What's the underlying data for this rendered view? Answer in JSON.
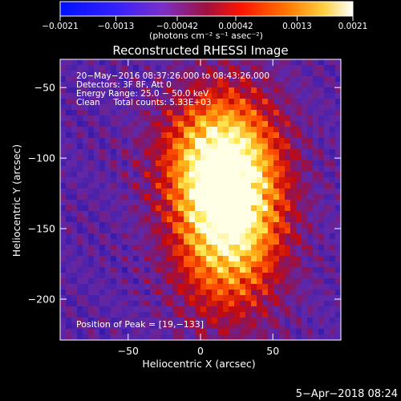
{
  "chart_data": {
    "type": "heatmap",
    "title": "Reconstructed RHESSI Image",
    "xlabel": "Heliocentric X (arcsec)",
    "ylabel": "Heliocentric Y (arcsec)",
    "xlim": [
      -97,
      97
    ],
    "ylim": [
      -229,
      -30
    ],
    "x_ticks": [
      -50,
      0,
      50
    ],
    "x_tick_labels": [
      "−50",
      "0",
      "50"
    ],
    "y_ticks": [
      -50,
      -100,
      -150,
      -200
    ],
    "y_tick_labels": [
      "−50",
      "−100",
      "−150",
      "−200"
    ],
    "colorbar": {
      "range": [
        -0.0021,
        0.0021
      ],
      "ticks": [
        -0.0021,
        -0.0013,
        -0.00042,
        0.00042,
        0.0013,
        0.0021
      ],
      "tick_labels": [
        "−0.0021",
        "−0.0013",
        "−0.00042",
        "0.00042",
        "0.0013",
        "0.0021"
      ],
      "unit_label": "(photons cm⁻² s⁻¹ asec⁻²)"
    },
    "info_lines": [
      "20−May−2016 08:37:26.000 to 08:43:26.000",
      "Detectors: 3F 8F, Att 0",
      "Energy Range: 25.0 − 50.0 keV",
      "Clean     Total counts: 5.33E+03"
    ],
    "peak": {
      "x": 19,
      "y": -133
    },
    "peak_label": "Position of Peak = [19,−133]",
    "colors": {
      "low": "#0000ff",
      "mid": "#ff0000",
      "high": "#ffffff"
    }
  },
  "footer": {
    "date": "5−Apr−2018 08:24"
  }
}
